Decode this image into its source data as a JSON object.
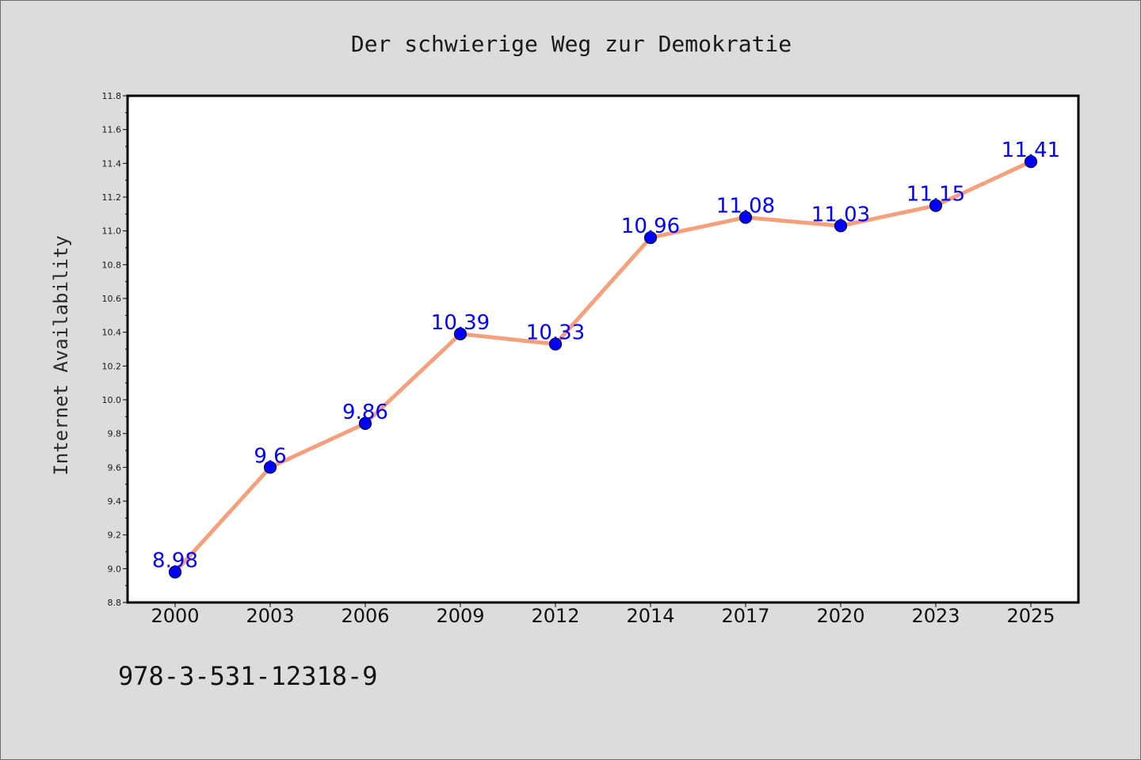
{
  "chart_data": {
    "type": "line",
    "title": "Der schwierige Weg zur Demokratie",
    "xlabel": "",
    "ylabel": "Internet Availability",
    "categories": [
      "2000",
      "2003",
      "2006",
      "2009",
      "2012",
      "2014",
      "2017",
      "2020",
      "2023",
      "2025"
    ],
    "series": [
      {
        "values": [
          8.98,
          9.6,
          9.86,
          10.39,
          10.33,
          10.96,
          11.08,
          11.03,
          11.15,
          11.41
        ]
      }
    ],
    "data_labels": [
      "8.98",
      "9.6",
      "9.86",
      "10.39",
      "10.33",
      "10.96",
      "11.08",
      "11.03",
      "11.15",
      "11.41"
    ],
    "ylim": [
      8.8,
      11.8
    ],
    "yticks": [
      "8.8",
      "9.0",
      "9.2",
      "9.4",
      "9.6",
      "9.8",
      "10.0",
      "10.2",
      "10.4",
      "10.6",
      "10.8",
      "11.0",
      "11.2",
      "11.4",
      "11.6",
      "11.8"
    ],
    "grid": false,
    "legend": "none",
    "colors": {
      "line": "#f4a07c",
      "marker": "#0000ff",
      "marker_edge": "#000033",
      "label": "#0000ff",
      "plot_bg": "#ffffff",
      "page_bg": "#dcdcdc"
    }
  },
  "footnote": "978-3-531-12318-9"
}
